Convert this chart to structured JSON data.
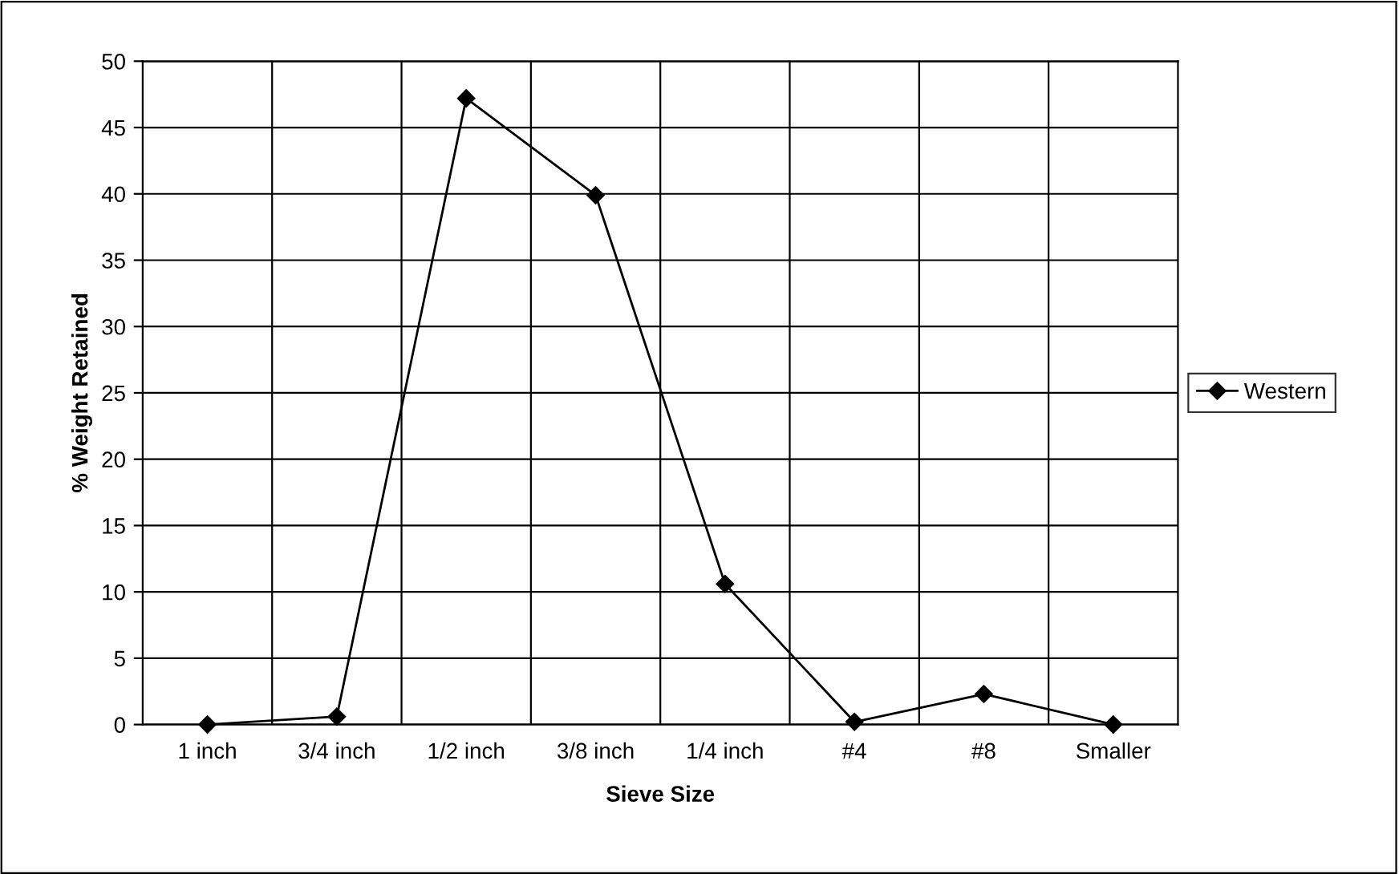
{
  "chart_data": {
    "type": "line",
    "xlabel": "Sieve Size",
    "ylabel": "% Weight Retained",
    "categories": [
      "1 inch",
      "3/4 inch",
      "1/2 inch",
      "3/8 inch",
      "1/4 inch",
      "#4",
      "#8",
      "Smaller"
    ],
    "series": [
      {
        "name": "Western",
        "color": "#000000",
        "values": [
          0,
          0.6,
          47.2,
          39.9,
          10.6,
          0.2,
          2.3,
          0
        ]
      }
    ],
    "ylim": [
      0,
      50
    ],
    "yticks": [
      0,
      5,
      10,
      15,
      20,
      25,
      30,
      35,
      40,
      45,
      50
    ],
    "grid": true,
    "legend": "right",
    "marker": "diamond",
    "line_style": "solid"
  }
}
